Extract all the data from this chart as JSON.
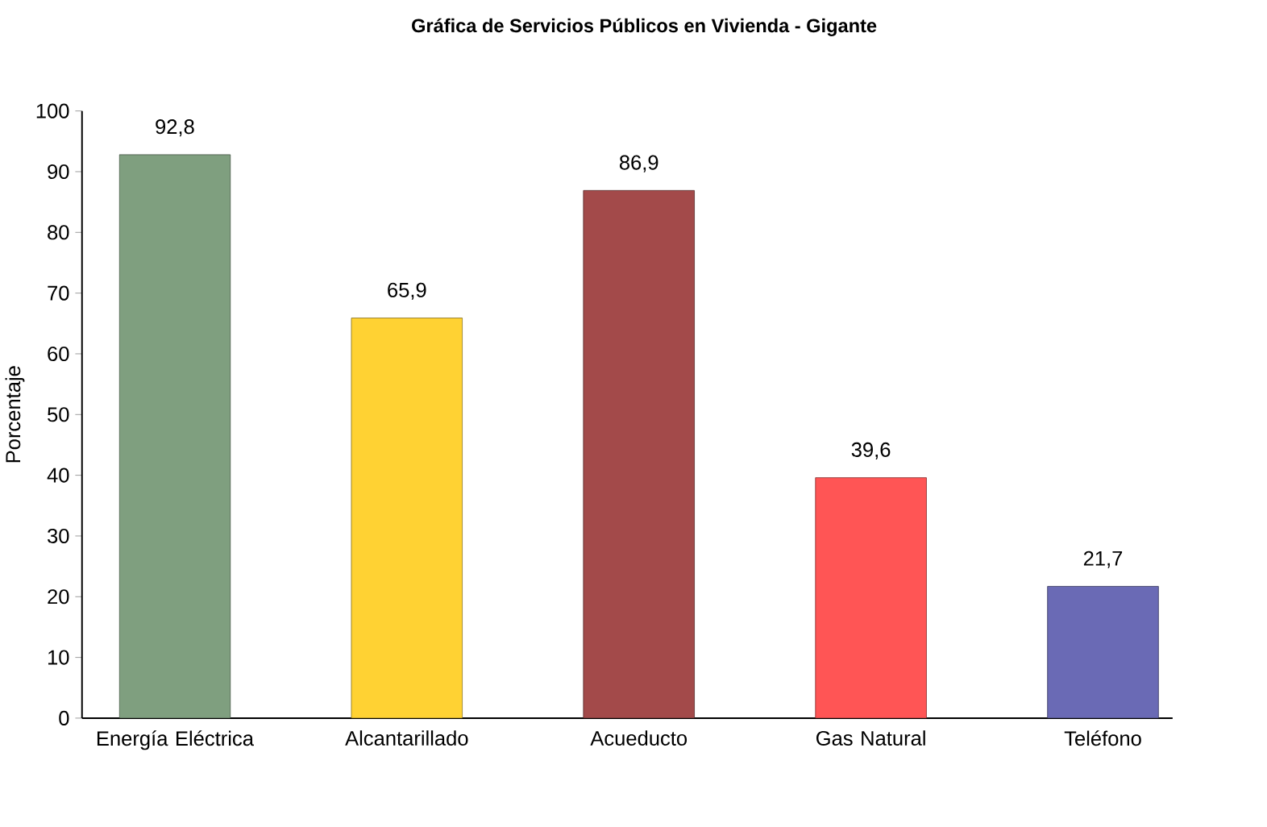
{
  "chart_data": {
    "type": "bar",
    "title": "Gráfica de Servicios Públicos en Vivienda - Gigante",
    "ylabel": "Porcentaje",
    "categories": [
      "Energía Eléctrica",
      "Alcantarillado",
      "Acueducto",
      "Gas Natural",
      "Teléfono"
    ],
    "values": [
      92.8,
      65.9,
      86.9,
      39.6,
      21.7
    ],
    "value_labels": [
      "92,8",
      "65,9",
      "86,9",
      "39,6",
      "21,7"
    ],
    "colors": [
      "#7f9f7f",
      "#ffd233",
      "#a34a4a",
      "#ff5555",
      "#6a6ab5"
    ],
    "ylim": [
      0,
      100
    ],
    "yticks": [
      0,
      10,
      20,
      30,
      40,
      50,
      60,
      70,
      80,
      90,
      100
    ]
  }
}
